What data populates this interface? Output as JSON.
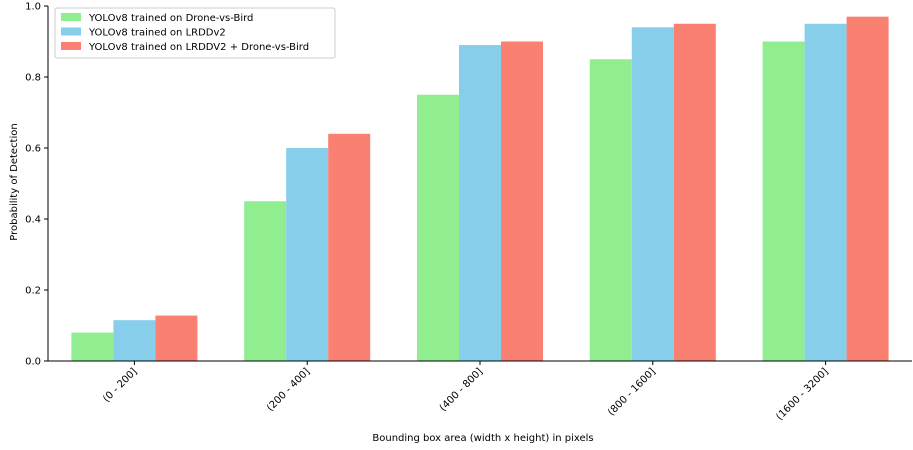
{
  "chart_data": {
    "type": "bar",
    "title": "",
    "xlabel": "Bounding box area (width x height) in pixels",
    "ylabel": "Probability of Detection",
    "ylim": [
      0,
      1.0
    ],
    "yticks": [
      "0.0",
      "0.2",
      "0.4",
      "0.6",
      "0.8",
      "1.0"
    ],
    "categories": [
      "(0 - 200]",
      "(200 - 400]",
      "(400 - 800]",
      "(800 - 1600]",
      "(1600 - 3200]"
    ],
    "series": [
      {
        "name": "YOLOv8 trained on Drone-vs-Bird",
        "color": "#90ee90",
        "values": [
          0.08,
          0.45,
          0.75,
          0.85,
          0.9
        ]
      },
      {
        "name": "YOLOv8 trained on LRDDv2",
        "color": "#87ceeb",
        "values": [
          0.115,
          0.6,
          0.89,
          0.94,
          0.95
        ]
      },
      {
        "name": "YOLOv8 trained on LRDDV2 + Drone-vs-Bird",
        "color": "#fa8072",
        "values": [
          0.128,
          0.64,
          0.9,
          0.95,
          0.97
        ]
      }
    ],
    "legend_position": "top-left",
    "grid": false
  }
}
